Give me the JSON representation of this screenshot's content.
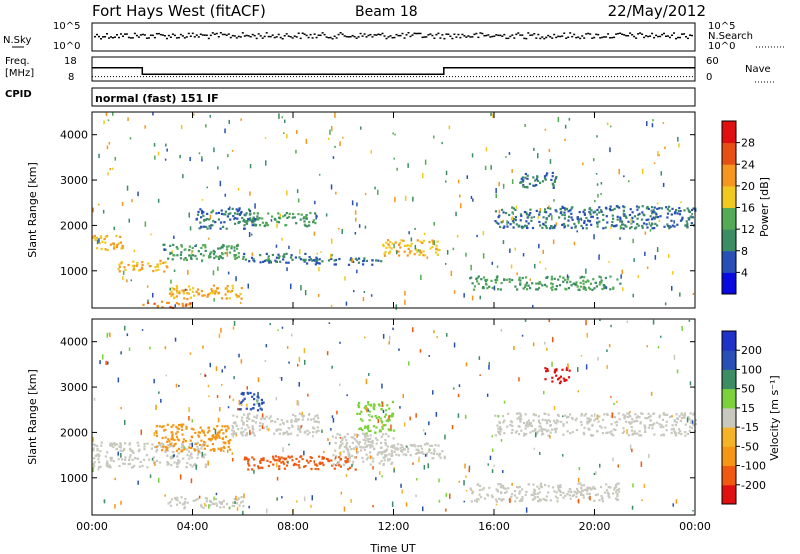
{
  "header": {
    "title": "Fort Hays West (fitACF)",
    "beam": "Beam 18",
    "date": "22/May/2012"
  },
  "labels": {
    "nsky": "N.Sky",
    "nsearch": "N.Search",
    "freq_line1": "Freq.",
    "freq_line2": "[MHz]",
    "nave": "Nave",
    "cpid": "CPID",
    "mode": "normal (fast) 151 IF",
    "slant_range": "Slant Range [km]",
    "time_axis": "Time UT",
    "power_bar": "Power [dB]",
    "velocity_bar": "Velocity  [m s⁻¹]"
  },
  "colors": {
    "power": [
      "#0a0ae0",
      "#2850b4",
      "#3c8c64",
      "#55aa55",
      "#f0c81e",
      "#f5961e",
      "#e65014",
      "#e01010"
    ],
    "velocity": [
      "#e01010",
      "#f05a10",
      "#f59614",
      "#f5b428",
      "#c8c8be",
      "#7cd23c",
      "#3c8c64",
      "#2850b4",
      "#1e32c8"
    ]
  },
  "chart_data": [
    {
      "type": "line",
      "name": "noise",
      "y_ticks": [
        "10^5",
        "10^0"
      ],
      "y_ticks_right": [
        "10^5",
        "10^0"
      ]
    },
    {
      "type": "line",
      "name": "frequency",
      "y_ticks": [
        18,
        8
      ],
      "y_ticks_right": [
        60,
        0
      ],
      "freq_segments": [
        {
          "start_h": 0.0,
          "end_h": 2.0,
          "value": 13.5
        },
        {
          "start_h": 2.0,
          "end_h": 14.0,
          "value": 10.8
        },
        {
          "start_h": 14.0,
          "end_h": 24.0,
          "value": 13.5
        }
      ],
      "nave": 11
    },
    {
      "type": "heatmap",
      "name": "power",
      "ylabel": "Slant Range [km]",
      "x_range": [
        0,
        24
      ],
      "y_range": [
        180,
        4500
      ],
      "x_ticks": [
        "00:00",
        "04:00",
        "08:00",
        "12:00",
        "16:00",
        "20:00",
        "00:00"
      ],
      "y_ticks": [
        1000,
        2000,
        3000,
        4000
      ],
      "colorbar_ticks": [
        4,
        8,
        12,
        16,
        20,
        24,
        28
      ],
      "colorbar_range": [
        0,
        32
      ],
      "regions": [
        {
          "t0": 0.0,
          "t1": 1.2,
          "r0": 1450,
          "r1": 1800,
          "v": 20
        },
        {
          "t0": 1.0,
          "t1": 3.0,
          "r0": 1000,
          "r1": 1250,
          "v": 20
        },
        {
          "t0": 2.8,
          "t1": 6.0,
          "r0": 1250,
          "r1": 1600,
          "v": 12
        },
        {
          "t0": 3.0,
          "t1": 6.0,
          "r0": 400,
          "r1": 700,
          "v": 20
        },
        {
          "t0": 2.0,
          "t1": 4.0,
          "r0": 200,
          "r1": 350,
          "v": 24
        },
        {
          "t0": 6.0,
          "t1": 9.0,
          "r0": 2000,
          "r1": 2300,
          "v": 12
        },
        {
          "t0": 6.0,
          "t1": 9.5,
          "r0": 1200,
          "r1": 1400,
          "v": 8
        },
        {
          "t0": 8.5,
          "t1": 11.5,
          "r0": 1150,
          "r1": 1300,
          "v": 8
        },
        {
          "t0": 11.5,
          "t1": 13.8,
          "r0": 1350,
          "r1": 1700,
          "v": 20
        },
        {
          "t0": 15.0,
          "t1": 21.0,
          "r0": 600,
          "r1": 900,
          "v": 12
        },
        {
          "t0": 16.0,
          "t1": 24.0,
          "r0": 1950,
          "r1": 2450,
          "v": 8
        },
        {
          "t0": 17.0,
          "t1": 18.5,
          "r0": 2850,
          "r1": 3200,
          "v": 8
        },
        {
          "t0": 4.0,
          "t1": 6.5,
          "r0": 1950,
          "r1": 2400,
          "v": 8
        }
      ]
    },
    {
      "type": "heatmap",
      "name": "velocity",
      "ylabel": "Slant Range [km]",
      "xlabel": "Time UT",
      "x_range": [
        0,
        24
      ],
      "y_range": [
        180,
        4500
      ],
      "x_ticks": [
        "00:00",
        "04:00",
        "08:00",
        "12:00",
        "16:00",
        "20:00",
        "00:00"
      ],
      "y_ticks": [
        1000,
        2000,
        3000,
        4000
      ],
      "colorbar_ticks": [
        200,
        100,
        50,
        15,
        -15,
        -50,
        -100,
        -200
      ],
      "colorbar_range": [
        -250,
        250
      ],
      "regions": [
        {
          "t0": 0.0,
          "t1": 4.5,
          "r0": 1250,
          "r1": 1800,
          "v": 0
        },
        {
          "t0": 2.5,
          "t1": 5.5,
          "r0": 1600,
          "r1": 2200,
          "v": -60
        },
        {
          "t0": 5.5,
          "t1": 9.0,
          "r0": 1950,
          "r1": 2450,
          "v": 0
        },
        {
          "t0": 6.0,
          "t1": 10.5,
          "r0": 1200,
          "r1": 1500,
          "v": -120
        },
        {
          "t0": 9.5,
          "t1": 12.0,
          "r0": 1300,
          "r1": 2000,
          "v": 0
        },
        {
          "t0": 11.0,
          "t1": 14.0,
          "r0": 1450,
          "r1": 1800,
          "v": 0
        },
        {
          "t0": 15.0,
          "t1": 21.0,
          "r0": 500,
          "r1": 900,
          "v": 0
        },
        {
          "t0": 16.0,
          "t1": 24.0,
          "r0": 1950,
          "r1": 2450,
          "v": 0
        },
        {
          "t0": 18.0,
          "t1": 19.0,
          "r0": 3100,
          "r1": 3450,
          "v": -220
        },
        {
          "t0": 3.0,
          "t1": 6.0,
          "r0": 350,
          "r1": 600,
          "v": 0
        },
        {
          "t0": 5.8,
          "t1": 6.8,
          "r0": 2500,
          "r1": 2900,
          "v": 150
        },
        {
          "t0": 10.5,
          "t1": 12.0,
          "r0": 2000,
          "r1": 2700,
          "v": 40
        }
      ]
    }
  ]
}
